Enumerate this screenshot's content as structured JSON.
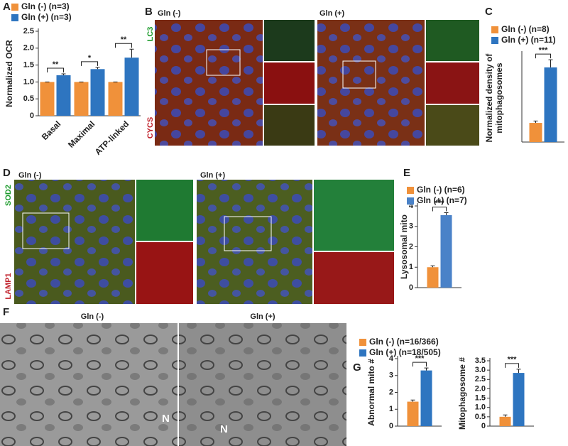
{
  "chart_data": [
    {
      "type": "bar",
      "panel": "A",
      "ylabel": "Normalized OCR",
      "categories": [
        "Basal",
        "Maximal",
        "ATP-linked"
      ],
      "series": [
        {
          "name": "Gln (-) (n=3)",
          "color": "#f0913a",
          "values": [
            1,
            1,
            1
          ],
          "errors": [
            0,
            0,
            0
          ]
        },
        {
          "name": "Gln (+) (n=3)",
          "color": "#2e75c0",
          "values": [
            1.2,
            1.38,
            1.72
          ],
          "errors": [
            0.04,
            0.05,
            0.25
          ]
        }
      ],
      "significance": [
        "**",
        "*",
        "**"
      ],
      "ylim": [
        0,
        2.5
      ],
      "yticks": [
        0,
        {
          "value": 0.5,
          "label": "0.5"
        },
        {
          "value": 1,
          "label": "1.0"
        },
        {
          "value": 1.5,
          "label": "1.5"
        },
        {
          "value": 2,
          "label": "2.0"
        },
        {
          "value": 2.5,
          "label": "2.5"
        }
      ]
    },
    {
      "type": "bar",
      "panel": "C",
      "ylabel": [
        "Normalized density of",
        "mitophagosomes"
      ],
      "categories": [
        null
      ],
      "series": [
        {
          "name": "Gln (-) (n=8)",
          "color": "#f0913a",
          "values": [
            1
          ],
          "errors": [
            0.1
          ]
        },
        {
          "name": "Gln (+) (n=11)",
          "color": "#2e75c0",
          "values": [
            3.9
          ],
          "errors": [
            0.4
          ]
        }
      ],
      "significance": [
        "***"
      ],
      "ylim": [
        0,
        4.6
      ]
    },
    {
      "type": "bar",
      "panel": "E",
      "ylabel": "Lysosomal mito",
      "categories": [
        null
      ],
      "series": [
        {
          "name": "Gln (-) (n=6)",
          "color": "#f0913a",
          "values": [
            1
          ],
          "errors": [
            0.07
          ]
        },
        {
          "name": "Gln (+) (n=7)",
          "color": "#4a82c8",
          "values": [
            3.55
          ],
          "errors": [
            0.12
          ]
        }
      ],
      "significance": [
        "***"
      ],
      "ylim": [
        0,
        4
      ],
      "yticks": [
        0,
        1,
        2,
        3,
        4
      ]
    },
    {
      "type": "bar",
      "panel": "G",
      "ylabel": "Abnormal mito #",
      "categories": [
        null
      ],
      "series": [
        {
          "name": "Gln (-) (n=16/366)",
          "color": "#f0913a",
          "values": [
            1.45
          ],
          "errors": [
            0.1
          ]
        },
        {
          "name": "Gln (+) (n=18/505)",
          "color": "#2e75c0",
          "values": [
            3.3
          ],
          "errors": [
            0.15
          ]
        }
      ],
      "significance": [
        "***"
      ],
      "ylim": [
        0,
        4
      ],
      "yticks": [
        0,
        1,
        2,
        3,
        4
      ]
    },
    {
      "type": "bar",
      "ylabel": "Mitophagosome #",
      "categories": [
        null
      ],
      "series": [
        {
          "color": "#f0913a",
          "values": [
            0.5
          ],
          "errors": [
            0.1
          ]
        },
        {
          "color": "#2e75c0",
          "values": [
            2.85
          ],
          "errors": [
            0.2
          ]
        }
      ],
      "significance": [
        "***"
      ],
      "ylim": [
        0,
        3.5
      ],
      "yticks": [
        0,
        {
          "value": 0.5,
          "label": "0.5"
        },
        {
          "value": 1,
          "label": "1.0"
        },
        {
          "value": 1.5,
          "label": "1.5"
        },
        {
          "value": 2,
          "label": "2.0"
        },
        {
          "value": 2.5,
          "label": "2.5"
        },
        {
          "value": 3,
          "label": "3.0"
        },
        {
          "value": 3.5,
          "label": "3.5"
        }
      ]
    }
  ],
  "images": [
    {
      "panel": "B",
      "groups": [
        "Gln (-)",
        "Gln (+)"
      ],
      "channels": [
        "LC3",
        "CYCS"
      ]
    },
    {
      "panel": "D",
      "groups": [
        "Gln (-)",
        "Gln (+)"
      ],
      "channels": [
        "SOD2",
        "LAMP1"
      ]
    },
    {
      "panel": "F",
      "groups": [
        "Gln (-)",
        "Gln (+)"
      ],
      "marks": [
        "N",
        "N"
      ]
    }
  ]
}
